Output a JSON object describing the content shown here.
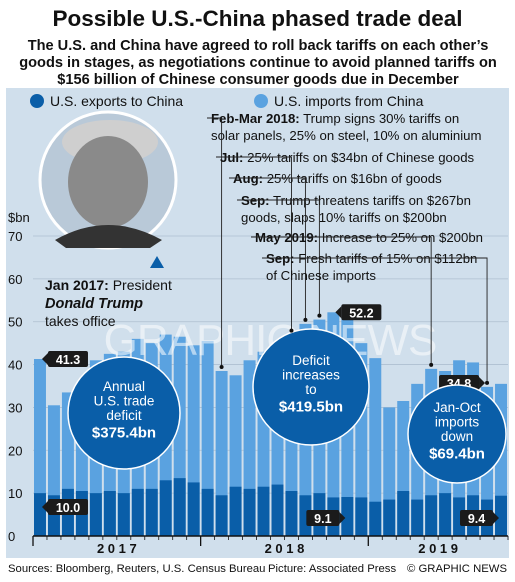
{
  "title": "Possible U.S.-China phased trade deal",
  "subtitle_lines": [
    "The U.S. and China have agreed to roll back tariffs on each other’s",
    "goods in stages, as negotiations continue to avoid planned tariffs on",
    "$156 billion of Chinese consumer goods due in December"
  ],
  "legend": {
    "exports": "U.S. exports to China",
    "imports": "U.S. imports from China"
  },
  "colors": {
    "exports": "#0a5ea8",
    "imports": "#5aa2e0",
    "background": "#d0dfec",
    "label_dark": "#111111"
  },
  "chart_data": {
    "type": "bar",
    "ylabel": "$bn",
    "ylim": [
      0,
      70
    ],
    "yticks": [
      "0",
      "10",
      "20",
      "30",
      "40",
      "50",
      "60",
      "70"
    ],
    "year_labels": [
      "2017",
      "2018",
      "2019"
    ],
    "months": [
      "2017-01",
      "2017-02",
      "2017-03",
      "2017-04",
      "2017-05",
      "2017-06",
      "2017-07",
      "2017-08",
      "2017-09",
      "2017-10",
      "2017-11",
      "2017-12",
      "2018-01",
      "2018-02",
      "2018-03",
      "2018-04",
      "2018-05",
      "2018-06",
      "2018-07",
      "2018-08",
      "2018-09",
      "2018-10",
      "2018-11",
      "2018-12",
      "2019-01",
      "2019-02",
      "2019-03",
      "2019-04",
      "2019-05",
      "2019-06",
      "2019-07",
      "2019-08",
      "2019-09",
      "2019-10"
    ],
    "series": [
      {
        "name": "U.S. imports from China",
        "values": [
          41.3,
          30.5,
          33.5,
          35.0,
          41.0,
          42.5,
          43.0,
          46.0,
          45.0,
          47.0,
          46.5,
          44.5,
          45.5,
          38.5,
          37.5,
          41.0,
          43.0,
          43.5,
          47.0,
          49.5,
          50.5,
          52.2,
          50.5,
          45.0,
          41.5,
          30.0,
          31.5,
          35.5,
          39.0,
          38.5,
          41.0,
          40.5,
          34.8,
          35.5
        ]
      },
      {
        "name": "U.S. exports to China",
        "values": [
          10.0,
          9.5,
          11.0,
          10.5,
          10.0,
          10.5,
          10.0,
          11.0,
          11.0,
          13.0,
          13.5,
          12.5,
          11.0,
          9.5,
          11.5,
          11.0,
          11.5,
          12.0,
          10.5,
          9.5,
          10.0,
          9.0,
          9.1,
          9.0,
          8.0,
          8.5,
          10.5,
          8.5,
          9.5,
          10.0,
          9.0,
          9.5,
          8.5,
          9.4
        ]
      }
    ],
    "callouts": [
      {
        "label": "41.3",
        "month": "2017-01"
      },
      {
        "label": "10.0",
        "month": "2017-01"
      },
      {
        "label": "52.2",
        "month": "2018-10"
      },
      {
        "label": "9.1",
        "month": "2018-11"
      },
      {
        "label": "34.8",
        "month": "2019-09"
      },
      {
        "label": "9.4",
        "month": "2019-10"
      }
    ],
    "bubbles": [
      {
        "lines": [
          "Annual",
          "U.S. trade",
          "deficit"
        ],
        "value": "$375.4bn"
      },
      {
        "lines": [
          "Deficit",
          "increases",
          "to"
        ],
        "value": "$419.5bn"
      },
      {
        "lines": [
          "Jan-Oct",
          "imports",
          "down"
        ],
        "value": "$69.4bn"
      }
    ],
    "timeline": [
      {
        "lines": [
          {
            "bold": "Feb-Mar 2018:",
            "text": " Trump signs 30% tariffs on"
          },
          {
            "bold": "",
            "text": "solar panels, 25% on steel, 10% on aluminium"
          }
        ],
        "month": "2018-02"
      },
      {
        "lines": [
          {
            "bold": "Jul:",
            "text": " 25% tariffs on $34bn of Chinese goods"
          }
        ],
        "month": "2018-07"
      },
      {
        "lines": [
          {
            "bold": "Aug:",
            "text": " 25% tariffs on $16bn of goods"
          }
        ],
        "month": "2018-08"
      },
      {
        "lines": [
          {
            "bold": "Sep:",
            "text": " Trump threatens tariffs on $267bn"
          },
          {
            "bold": "",
            "text": "goods, slaps 10% tariffs on $200bn"
          }
        ],
        "month": "2018-09"
      },
      {
        "lines": [
          {
            "bold": "May 2019:",
            "text": " Increase to 25% on $200bn"
          }
        ],
        "month": "2019-05"
      },
      {
        "lines": [
          {
            "bold": "Sep:",
            "text": " Fresh tariffs of 15% on $112bn"
          },
          {
            "bold": "",
            "text": "of Chinese imports"
          }
        ],
        "month": "2019-09"
      }
    ],
    "trump_note": {
      "bold": "Jan 2017:",
      "text": " President",
      "name": "Donald Trump",
      "tail": "takes office"
    }
  },
  "watermark": "GRAPHIC NEWS",
  "footer": {
    "sources": "Sources: Bloomberg, Reuters, U.S. Census Bureau",
    "picture": "Picture: Associated Press",
    "credit": "© GRAPHIC NEWS"
  }
}
